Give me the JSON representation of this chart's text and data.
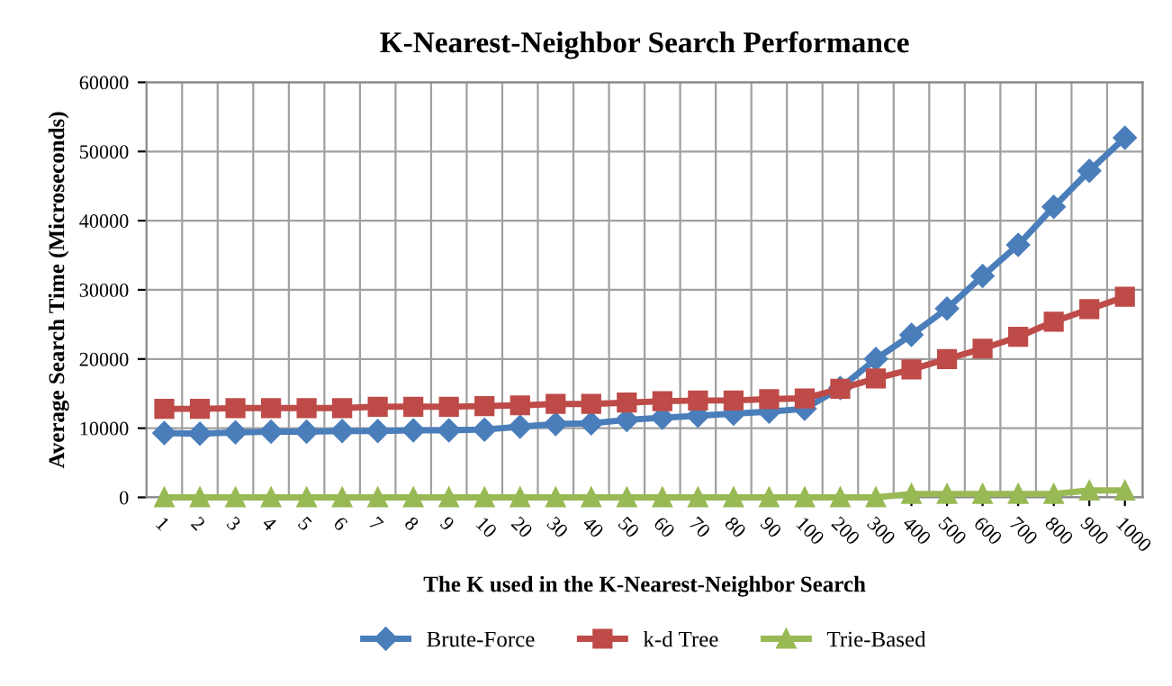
{
  "chart_data": {
    "type": "line",
    "title": "K-Nearest-Neighbor Search Performance",
    "xlabel": "The K used in the K-Nearest-Neighbor Search",
    "ylabel": "Average Search Time (Microseconds)",
    "categories": [
      "1",
      "2",
      "3",
      "4",
      "5",
      "6",
      "7",
      "8",
      "9",
      "10",
      "20",
      "30",
      "40",
      "50",
      "60",
      "70",
      "80",
      "90",
      "100",
      "200",
      "300",
      "400",
      "500",
      "600",
      "700",
      "800",
      "900",
      "1000"
    ],
    "series": [
      {
        "name": "Brute-Force",
        "color": "#4a7ebb",
        "marker": "diamond",
        "values": [
          9300,
          9200,
          9400,
          9500,
          9500,
          9600,
          9600,
          9700,
          9700,
          9800,
          10200,
          10600,
          10700,
          11200,
          11500,
          11800,
          12100,
          12400,
          12800,
          15800,
          20000,
          23500,
          27300,
          32000,
          36500,
          42000,
          47200,
          52000
        ]
      },
      {
        "name": "k-d Tree",
        "color": "#be4b48",
        "marker": "square",
        "values": [
          12800,
          12800,
          12900,
          12900,
          12900,
          12900,
          13100,
          13100,
          13100,
          13200,
          13300,
          13500,
          13500,
          13700,
          13900,
          14000,
          14000,
          14200,
          14300,
          15700,
          17200,
          18500,
          20000,
          21500,
          23200,
          25400,
          27200,
          29000
        ]
      },
      {
        "name": "Trie-Based",
        "color": "#98b954",
        "marker": "triangle",
        "values": [
          0,
          0,
          0,
          0,
          0,
          0,
          0,
          0,
          0,
          0,
          0,
          0,
          0,
          0,
          0,
          0,
          0,
          0,
          0,
          0,
          0,
          500,
          500,
          500,
          500,
          500,
          1000,
          1000
        ]
      }
    ],
    "ylim": [
      0,
      60000
    ],
    "yticks": [
      0,
      10000,
      20000,
      30000,
      40000,
      50000,
      60000
    ],
    "grid": true,
    "legend": "bottom"
  }
}
